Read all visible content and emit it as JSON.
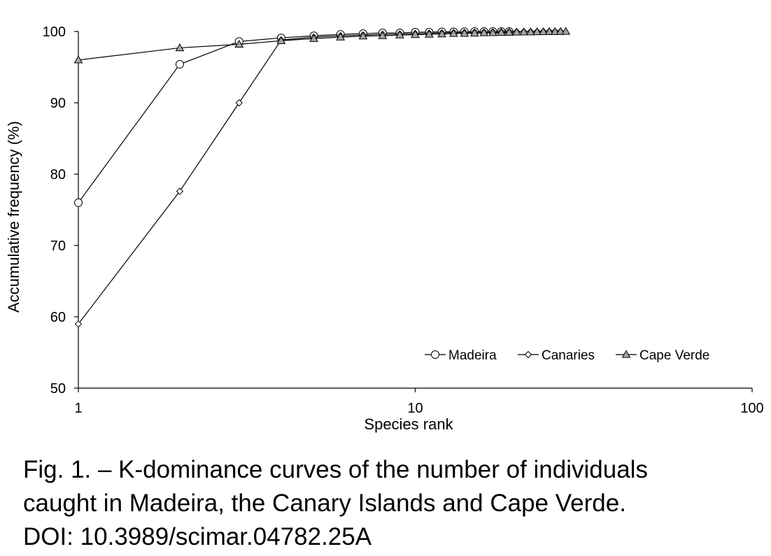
{
  "chart_data": {
    "type": "line",
    "xscale": "log",
    "xlabel": "Species rank",
    "ylabel": "Accumulative frequency (%)",
    "xlim": [
      1,
      100
    ],
    "ylim": [
      50,
      100
    ],
    "xticks": [
      "1",
      "10",
      "100"
    ],
    "yticks": [
      "50",
      "60",
      "70",
      "80",
      "90",
      "100"
    ],
    "grid": false,
    "legend_position": "bottom-right",
    "series": [
      {
        "name": "Madeira",
        "marker": "circle",
        "marker_fill": "#ffffff",
        "x": [
          1,
          2,
          3,
          4,
          5,
          6,
          7,
          8,
          9,
          10,
          11,
          12,
          13,
          14,
          15,
          16,
          17,
          18,
          19
        ],
        "y": [
          76,
          95.4,
          98.6,
          99.1,
          99.4,
          99.6,
          99.7,
          99.8,
          99.8,
          99.9,
          99.9,
          99.95,
          99.95,
          99.97,
          100,
          100,
          100,
          100,
          100
        ]
      },
      {
        "name": "Canaries",
        "marker": "diamond",
        "marker_fill": "#ffffff",
        "x": [
          1,
          2,
          3,
          4,
          5,
          6,
          7,
          8,
          9,
          10,
          11,
          12,
          13,
          14,
          15,
          16,
          17,
          18,
          19,
          20,
          21,
          22,
          23,
          24,
          25,
          26,
          27
        ],
        "y": [
          59,
          77.6,
          90,
          98.8,
          99.2,
          99.4,
          99.5,
          99.6,
          99.65,
          99.7,
          99.75,
          99.8,
          99.85,
          99.87,
          99.9,
          99.92,
          99.93,
          99.95,
          99.96,
          99.97,
          99.98,
          99.98,
          99.99,
          99.99,
          100,
          100,
          100
        ]
      },
      {
        "name": "Cape Verde",
        "marker": "triangle",
        "marker_fill": "#a6a6a6",
        "x": [
          1,
          2,
          3,
          4,
          5,
          6,
          7,
          8,
          9,
          10,
          11,
          12,
          13,
          14,
          15,
          16,
          17,
          18,
          19,
          20,
          21,
          22,
          23,
          24,
          25,
          26,
          27,
          28
        ],
        "y": [
          96,
          97.7,
          98.2,
          98.7,
          99,
          99.2,
          99.35,
          99.4,
          99.5,
          99.55,
          99.6,
          99.65,
          99.7,
          99.72,
          99.75,
          99.8,
          99.82,
          99.85,
          99.87,
          99.9,
          99.92,
          99.93,
          99.95,
          99.96,
          99.97,
          99.98,
          99.99,
          100
        ]
      }
    ]
  },
  "caption": {
    "line1": "Fig. 1. – K-dominance curves of the number of individuals",
    "line2": "caught in Madeira, the Canary Islands and Cape Verde.",
    "line3": "DOI: 10.3989/scimar.04782.25A"
  }
}
